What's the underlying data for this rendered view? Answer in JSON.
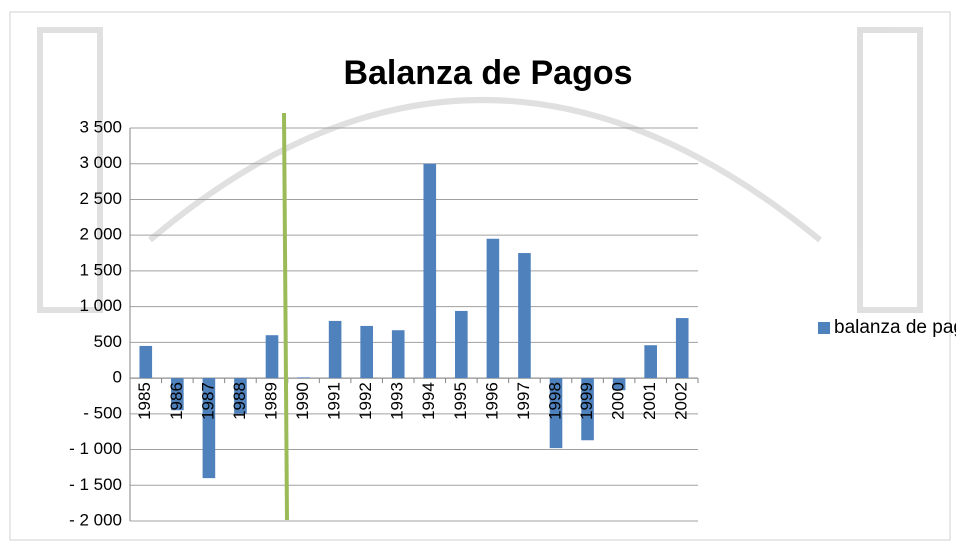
{
  "chart_data": {
    "type": "bar",
    "title": "Balanza de Pagos",
    "categories": [
      "1985",
      "1986",
      "1987",
      "1988",
      "1989",
      "1990",
      "1991",
      "1992",
      "1993",
      "1994",
      "1995",
      "1996",
      "1997",
      "1998",
      "1999",
      "2000",
      "2001",
      "2002"
    ],
    "series": [
      {
        "name": "balanza de pagos",
        "color": "#4f81bd",
        "values": [
          450,
          -450,
          -1400,
          -500,
          600,
          10,
          800,
          730,
          670,
          3000,
          940,
          1950,
          1750,
          -980,
          -870,
          -170,
          460,
          840
        ]
      }
    ],
    "ylim": [
      -2000,
      3500
    ],
    "yticks": [
      {
        "value": -2000,
        "label": "- 2 000"
      },
      {
        "value": -1500,
        "label": "- 1 500"
      },
      {
        "value": -1000,
        "label": "- 1 000"
      },
      {
        "value": -500,
        "label": "- 500"
      },
      0,
      500,
      {
        "value": 1000,
        "label": "1 000"
      },
      {
        "value": 1500,
        "label": "1 500"
      },
      {
        "value": 2000,
        "label": "2 000"
      },
      {
        "value": 2500,
        "label": "2 500"
      },
      {
        "value": 3000,
        "label": "3 000"
      },
      {
        "value": 3500,
        "label": "3 500"
      }
    ],
    "grid": true,
    "legend": "right"
  }
}
